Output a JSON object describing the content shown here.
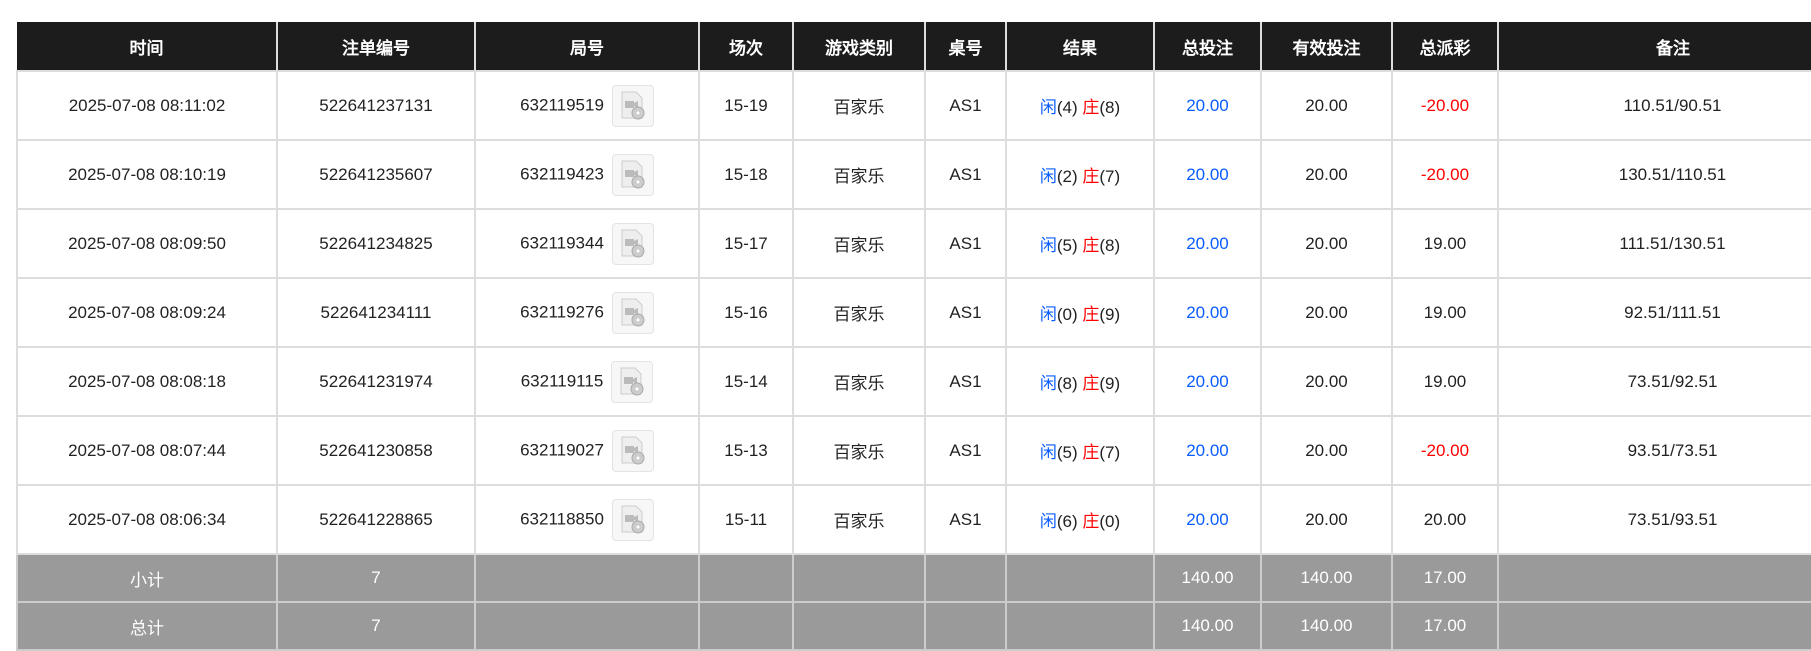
{
  "headers": [
    "时间",
    "注单编号",
    "局号",
    "场次",
    "游戏类别",
    "桌号",
    "结果",
    "总投注",
    "有效投注",
    "总派彩",
    "备注"
  ],
  "rows": [
    {
      "time": "2025-07-08 08:11:02",
      "bet_id": "522641237131",
      "round": "632119519",
      "shoe": "15-19",
      "game": "百家乐",
      "table": "AS1",
      "player_label": "闲",
      "player": "(4)",
      "banker_label": "庄",
      "banker": "(8)",
      "total_bet": "20.00",
      "valid_bet": "20.00",
      "payout": "-20.00",
      "payout_negative": true,
      "remark": "110.51/90.51"
    },
    {
      "time": "2025-07-08 08:10:19",
      "bet_id": "522641235607",
      "round": "632119423",
      "shoe": "15-18",
      "game": "百家乐",
      "table": "AS1",
      "player_label": "闲",
      "player": "(2)",
      "banker_label": "庄",
      "banker": "(7)",
      "total_bet": "20.00",
      "valid_bet": "20.00",
      "payout": "-20.00",
      "payout_negative": true,
      "remark": "130.51/110.51"
    },
    {
      "time": "2025-07-08 08:09:50",
      "bet_id": "522641234825",
      "round": "632119344",
      "shoe": "15-17",
      "game": "百家乐",
      "table": "AS1",
      "player_label": "闲",
      "player": "(5)",
      "banker_label": "庄",
      "banker": "(8)",
      "total_bet": "20.00",
      "valid_bet": "20.00",
      "payout": "19.00",
      "payout_negative": false,
      "remark": "111.51/130.51"
    },
    {
      "time": "2025-07-08 08:09:24",
      "bet_id": "522641234111",
      "round": "632119276",
      "shoe": "15-16",
      "game": "百家乐",
      "table": "AS1",
      "player_label": "闲",
      "player": "(0)",
      "banker_label": "庄",
      "banker": "(9)",
      "total_bet": "20.00",
      "valid_bet": "20.00",
      "payout": "19.00",
      "payout_negative": false,
      "remark": "92.51/111.51"
    },
    {
      "time": "2025-07-08 08:08:18",
      "bet_id": "522641231974",
      "round": "632119115",
      "shoe": "15-14",
      "game": "百家乐",
      "table": "AS1",
      "player_label": "闲",
      "player": "(8)",
      "banker_label": "庄",
      "banker": "(9)",
      "total_bet": "20.00",
      "valid_bet": "20.00",
      "payout": "19.00",
      "payout_negative": false,
      "remark": "73.51/92.51"
    },
    {
      "time": "2025-07-08 08:07:44",
      "bet_id": "522641230858",
      "round": "632119027",
      "shoe": "15-13",
      "game": "百家乐",
      "table": "AS1",
      "player_label": "闲",
      "player": "(5)",
      "banker_label": "庄",
      "banker": "(7)",
      "total_bet": "20.00",
      "valid_bet": "20.00",
      "payout": "-20.00",
      "payout_negative": true,
      "remark": "93.51/73.51"
    },
    {
      "time": "2025-07-08 08:06:34",
      "bet_id": "522641228865",
      "round": "632118850",
      "shoe": "15-11",
      "game": "百家乐",
      "table": "AS1",
      "player_label": "闲",
      "player": "(6)",
      "banker_label": "庄",
      "banker": "(0)",
      "total_bet": "20.00",
      "valid_bet": "20.00",
      "payout": "20.00",
      "payout_negative": false,
      "remark": "73.51/93.51"
    }
  ],
  "footer": [
    {
      "label": "小计",
      "count": "7",
      "total_bet": "140.00",
      "valid_bet": "140.00",
      "payout": "17.00"
    },
    {
      "label": "总计",
      "count": "7",
      "total_bet": "140.00",
      "valid_bet": "140.00",
      "payout": "17.00"
    }
  ],
  "colors": {
    "header_bg": "#1c1c1c",
    "footer_bg": "#9a9a9a",
    "player": "#0a5cff",
    "banker": "#ff0000",
    "negative": "#ff0000"
  },
  "icons": {
    "replay": "video-file-icon"
  }
}
